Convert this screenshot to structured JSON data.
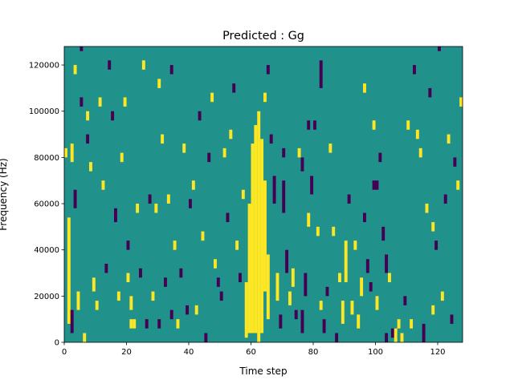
{
  "chart_data": {
    "type": "heatmap",
    "title": "Predicted : Gg",
    "xlabel": "Time step",
    "ylabel": "Frequency (Hz)",
    "xlim": [
      0,
      128
    ],
    "ylim": [
      0,
      128000
    ],
    "x_ticks": [
      0,
      20,
      40,
      60,
      80,
      100,
      120
    ],
    "y_ticks": [
      0,
      20000,
      40000,
      60000,
      80000,
      100000,
      120000
    ],
    "cells_x": 128,
    "cells_y": 128,
    "levels": {
      "low": -1,
      "mid": 0,
      "high": 1
    },
    "colors": {
      "low": "#440154",
      "mid": "#21918c",
      "high": "#fde725"
    },
    "background_level": 0,
    "column_runs": [
      {
        "x": 0,
        "y0": 80000,
        "y1": 84000,
        "level": 1
      },
      {
        "x": 1,
        "y0": 8000,
        "y1": 54000,
        "level": 1
      },
      {
        "x": 2,
        "y0": 4000,
        "y1": 14000,
        "level": -1
      },
      {
        "x": 2,
        "y0": 78000,
        "y1": 86000,
        "level": 1
      },
      {
        "x": 3,
        "y0": 116000,
        "y1": 120000,
        "level": 1
      },
      {
        "x": 3,
        "y0": 58000,
        "y1": 66000,
        "level": -1
      },
      {
        "x": 4,
        "y0": 14000,
        "y1": 22000,
        "level": 1
      },
      {
        "x": 5,
        "y0": 126000,
        "y1": 128000,
        "level": -1
      },
      {
        "x": 5,
        "y0": 102000,
        "y1": 106000,
        "level": -1
      },
      {
        "x": 6,
        "y0": 0,
        "y1": 4000,
        "level": 1
      },
      {
        "x": 7,
        "y0": 96000,
        "y1": 100000,
        "level": 1
      },
      {
        "x": 7,
        "y0": 86000,
        "y1": 90000,
        "level": -1
      },
      {
        "x": 8,
        "y0": 74000,
        "y1": 78000,
        "level": 1
      },
      {
        "x": 9,
        "y0": 22000,
        "y1": 28000,
        "level": 1
      },
      {
        "x": 10,
        "y0": 14000,
        "y1": 18000,
        "level": 1
      },
      {
        "x": 11,
        "y0": 102000,
        "y1": 106000,
        "level": 1
      },
      {
        "x": 12,
        "y0": 66000,
        "y1": 70000,
        "level": 1
      },
      {
        "x": 13,
        "y0": 30000,
        "y1": 34000,
        "level": -1
      },
      {
        "x": 14,
        "y0": 118000,
        "y1": 122000,
        "level": -1
      },
      {
        "x": 15,
        "y0": 96000,
        "y1": 100000,
        "level": -1
      },
      {
        "x": 16,
        "y0": 52000,
        "y1": 58000,
        "level": -1
      },
      {
        "x": 17,
        "y0": 18000,
        "y1": 22000,
        "level": 1
      },
      {
        "x": 18,
        "y0": 78000,
        "y1": 82000,
        "level": 1
      },
      {
        "x": 19,
        "y0": 102000,
        "y1": 106000,
        "level": 1
      },
      {
        "x": 20,
        "y0": 26000,
        "y1": 30000,
        "level": 1
      },
      {
        "x": 20,
        "y0": 40000,
        "y1": 44000,
        "level": -1
      },
      {
        "x": 21,
        "y0": 14000,
        "y1": 20000,
        "level": 1
      },
      {
        "x": 21,
        "y0": 6000,
        "y1": 10000,
        "level": 1
      },
      {
        "x": 22,
        "y0": 6000,
        "y1": 10000,
        "level": 1
      },
      {
        "x": 23,
        "y0": 56000,
        "y1": 60000,
        "level": 1
      },
      {
        "x": 24,
        "y0": 28000,
        "y1": 32000,
        "level": -1
      },
      {
        "x": 25,
        "y0": 118000,
        "y1": 122000,
        "level": 1
      },
      {
        "x": 26,
        "y0": 6000,
        "y1": 10000,
        "level": -1
      },
      {
        "x": 27,
        "y0": 60000,
        "y1": 64000,
        "level": -1
      },
      {
        "x": 28,
        "y0": 18000,
        "y1": 22000,
        "level": 1
      },
      {
        "x": 29,
        "y0": 56000,
        "y1": 60000,
        "level": 1
      },
      {
        "x": 30,
        "y0": 110000,
        "y1": 114000,
        "level": 1
      },
      {
        "x": 30,
        "y0": 6000,
        "y1": 10000,
        "level": -1
      },
      {
        "x": 31,
        "y0": 86000,
        "y1": 90000,
        "level": 1
      },
      {
        "x": 32,
        "y0": 24000,
        "y1": 28000,
        "level": -1
      },
      {
        "x": 33,
        "y0": 60000,
        "y1": 64000,
        "level": 1
      },
      {
        "x": 34,
        "y0": 116000,
        "y1": 120000,
        "level": -1
      },
      {
        "x": 34,
        "y0": 10000,
        "y1": 14000,
        "level": -1
      },
      {
        "x": 35,
        "y0": 40000,
        "y1": 44000,
        "level": 1
      },
      {
        "x": 36,
        "y0": 6000,
        "y1": 10000,
        "level": 1
      },
      {
        "x": 37,
        "y0": 28000,
        "y1": 32000,
        "level": -1
      },
      {
        "x": 38,
        "y0": 82000,
        "y1": 86000,
        "level": 1
      },
      {
        "x": 39,
        "y0": 12000,
        "y1": 16000,
        "level": -1
      },
      {
        "x": 40,
        "y0": 58000,
        "y1": 62000,
        "level": -1
      },
      {
        "x": 41,
        "y0": 66000,
        "y1": 70000,
        "level": 1
      },
      {
        "x": 42,
        "y0": 12000,
        "y1": 16000,
        "level": 1
      },
      {
        "x": 43,
        "y0": 96000,
        "y1": 100000,
        "level": -1
      },
      {
        "x": 44,
        "y0": 44000,
        "y1": 48000,
        "level": 1
      },
      {
        "x": 45,
        "y0": 0,
        "y1": 4000,
        "level": -1
      },
      {
        "x": 46,
        "y0": 78000,
        "y1": 82000,
        "level": -1
      },
      {
        "x": 47,
        "y0": 104000,
        "y1": 108000,
        "level": 1
      },
      {
        "x": 48,
        "y0": 32000,
        "y1": 36000,
        "level": 1
      },
      {
        "x": 49,
        "y0": 24000,
        "y1": 28000,
        "level": -1
      },
      {
        "x": 50,
        "y0": 18000,
        "y1": 22000,
        "level": -1
      },
      {
        "x": 51,
        "y0": 80000,
        "y1": 84000,
        "level": 1
      },
      {
        "x": 52,
        "y0": 52000,
        "y1": 56000,
        "level": -1
      },
      {
        "x": 53,
        "y0": 88000,
        "y1": 92000,
        "level": 1
      },
      {
        "x": 54,
        "y0": 108000,
        "y1": 112000,
        "level": -1
      },
      {
        "x": 55,
        "y0": 40000,
        "y1": 44000,
        "level": 1
      },
      {
        "x": 56,
        "y0": 26000,
        "y1": 30000,
        "level": -1
      },
      {
        "x": 57,
        "y0": 62000,
        "y1": 66000,
        "level": 1
      },
      {
        "x": 58,
        "y0": 2000,
        "y1": 26000,
        "level": 1
      },
      {
        "x": 59,
        "y0": 4000,
        "y1": 60000,
        "level": 1
      },
      {
        "x": 60,
        "y0": 4000,
        "y1": 86000,
        "level": 1
      },
      {
        "x": 61,
        "y0": 4000,
        "y1": 94000,
        "level": 1
      },
      {
        "x": 62,
        "y0": 0,
        "y1": 100000,
        "level": 1
      },
      {
        "x": 63,
        "y0": 4000,
        "y1": 88000,
        "level": 1
      },
      {
        "x": 64,
        "y0": 22000,
        "y1": 70000,
        "level": 1
      },
      {
        "x": 65,
        "y0": 10000,
        "y1": 38000,
        "level": 1
      },
      {
        "x": 66,
        "y0": 86000,
        "y1": 90000,
        "level": -1
      },
      {
        "x": 67,
        "y0": 60000,
        "y1": 72000,
        "level": -1
      },
      {
        "x": 68,
        "y0": 18000,
        "y1": 30000,
        "level": 1
      },
      {
        "x": 69,
        "y0": 6000,
        "y1": 12000,
        "level": -1
      },
      {
        "x": 70,
        "y0": 56000,
        "y1": 70000,
        "level": -1
      },
      {
        "x": 71,
        "y0": 30000,
        "y1": 40000,
        "level": -1
      },
      {
        "x": 72,
        "y0": 16000,
        "y1": 22000,
        "level": 1
      },
      {
        "x": 73,
        "y0": 24000,
        "y1": 32000,
        "level": 1
      },
      {
        "x": 74,
        "y0": 10000,
        "y1": 14000,
        "level": -1
      },
      {
        "x": 75,
        "y0": 80000,
        "y1": 84000,
        "level": 1
      },
      {
        "x": 76,
        "y0": 4000,
        "y1": 14000,
        "level": -1
      },
      {
        "x": 77,
        "y0": 20000,
        "y1": 30000,
        "level": -1
      },
      {
        "x": 78,
        "y0": 50000,
        "y1": 56000,
        "level": 1
      },
      {
        "x": 79,
        "y0": 64000,
        "y1": 72000,
        "level": -1
      },
      {
        "x": 80,
        "y0": 92000,
        "y1": 96000,
        "level": -1
      },
      {
        "x": 81,
        "y0": 46000,
        "y1": 50000,
        "level": 1
      },
      {
        "x": 82,
        "y0": 14000,
        "y1": 18000,
        "level": 1
      },
      {
        "x": 83,
        "y0": 4000,
        "y1": 10000,
        "level": -1
      },
      {
        "x": 84,
        "y0": 20000,
        "y1": 24000,
        "level": -1
      },
      {
        "x": 85,
        "y0": 82000,
        "y1": 86000,
        "level": 1
      },
      {
        "x": 86,
        "y0": 46000,
        "y1": 50000,
        "level": 1
      },
      {
        "x": 87,
        "y0": 0,
        "y1": 4000,
        "level": -1
      },
      {
        "x": 88,
        "y0": 26000,
        "y1": 30000,
        "level": 1
      },
      {
        "x": 89,
        "y0": 8000,
        "y1": 18000,
        "level": 1
      },
      {
        "x": 90,
        "y0": 26000,
        "y1": 44000,
        "level": 1
      },
      {
        "x": 91,
        "y0": 60000,
        "y1": 64000,
        "level": -1
      },
      {
        "x": 92,
        "y0": 12000,
        "y1": 18000,
        "level": 1
      },
      {
        "x": 93,
        "y0": 40000,
        "y1": 44000,
        "level": 1
      },
      {
        "x": 94,
        "y0": 6000,
        "y1": 12000,
        "level": 1
      },
      {
        "x": 95,
        "y0": 20000,
        "y1": 28000,
        "level": 1
      },
      {
        "x": 96,
        "y0": 52000,
        "y1": 56000,
        "level": -1
      },
      {
        "x": 97,
        "y0": 30000,
        "y1": 36000,
        "level": -1
      },
      {
        "x": 98,
        "y0": 22000,
        "y1": 26000,
        "level": -1
      },
      {
        "x": 99,
        "y0": 92000,
        "y1": 96000,
        "level": 1
      },
      {
        "x": 100,
        "y0": 14000,
        "y1": 20000,
        "level": 1
      },
      {
        "x": 101,
        "y0": 78000,
        "y1": 82000,
        "level": -1
      },
      {
        "x": 102,
        "y0": 44000,
        "y1": 50000,
        "level": -1
      },
      {
        "x": 103,
        "y0": 0,
        "y1": 4000,
        "level": -1
      },
      {
        "x": 104,
        "y0": 26000,
        "y1": 30000,
        "level": 1
      },
      {
        "x": 105,
        "y0": 2000,
        "y1": 6000,
        "level": -1
      },
      {
        "x": 106,
        "y0": 0,
        "y1": 6000,
        "level": 1
      },
      {
        "x": 107,
        "y0": 6000,
        "y1": 10000,
        "level": 1
      },
      {
        "x": 108,
        "y0": 0,
        "y1": 4000,
        "level": 1
      },
      {
        "x": 109,
        "y0": 16000,
        "y1": 20000,
        "level": -1
      },
      {
        "x": 110,
        "y0": 92000,
        "y1": 96000,
        "level": 1
      },
      {
        "x": 111,
        "y0": 6000,
        "y1": 10000,
        "level": 1
      },
      {
        "x": 112,
        "y0": 116000,
        "y1": 120000,
        "level": -1
      },
      {
        "x": 113,
        "y0": 88000,
        "y1": 92000,
        "level": 1
      },
      {
        "x": 114,
        "y0": 80000,
        "y1": 84000,
        "level": 1
      },
      {
        "x": 115,
        "y0": 0,
        "y1": 8000,
        "level": -1
      },
      {
        "x": 116,
        "y0": 56000,
        "y1": 60000,
        "level": 1
      },
      {
        "x": 117,
        "y0": 106000,
        "y1": 110000,
        "level": -1
      },
      {
        "x": 118,
        "y0": 12000,
        "y1": 16000,
        "level": 1
      },
      {
        "x": 119,
        "y0": 40000,
        "y1": 44000,
        "level": -1
      },
      {
        "x": 120,
        "y0": 126000,
        "y1": 128000,
        "level": -1
      },
      {
        "x": 121,
        "y0": 18000,
        "y1": 22000,
        "level": 1
      },
      {
        "x": 122,
        "y0": 60000,
        "y1": 64000,
        "level": -1
      },
      {
        "x": 123,
        "y0": 86000,
        "y1": 90000,
        "level": 1
      },
      {
        "x": 124,
        "y0": 8000,
        "y1": 12000,
        "level": -1
      },
      {
        "x": 125,
        "y0": 76000,
        "y1": 80000,
        "level": -1
      },
      {
        "x": 126,
        "y0": 66000,
        "y1": 70000,
        "level": 1
      },
      {
        "x": 127,
        "y0": 102000,
        "y1": 106000,
        "level": 1
      },
      {
        "x": 64,
        "y0": 104000,
        "y1": 108000,
        "level": 1
      },
      {
        "x": 65,
        "y0": 116000,
        "y1": 120000,
        "level": -1
      },
      {
        "x": 70,
        "y0": 80000,
        "y1": 84000,
        "level": -1
      },
      {
        "x": 76,
        "y0": 74000,
        "y1": 80000,
        "level": -1
      },
      {
        "x": 78,
        "y0": 92000,
        "y1": 96000,
        "level": -1
      },
      {
        "x": 82,
        "y0": 110000,
        "y1": 122000,
        "level": -1
      },
      {
        "x": 96,
        "y0": 108000,
        "y1": 112000,
        "level": 1
      },
      {
        "x": 99,
        "y0": 66000,
        "y1": 70000,
        "level": -1
      },
      {
        "x": 100,
        "y0": 66000,
        "y1": 70000,
        "level": -1
      },
      {
        "x": 103,
        "y0": 30000,
        "y1": 38000,
        "level": -1
      },
      {
        "x": 118,
        "y0": 48000,
        "y1": 52000,
        "level": 1
      }
    ]
  }
}
